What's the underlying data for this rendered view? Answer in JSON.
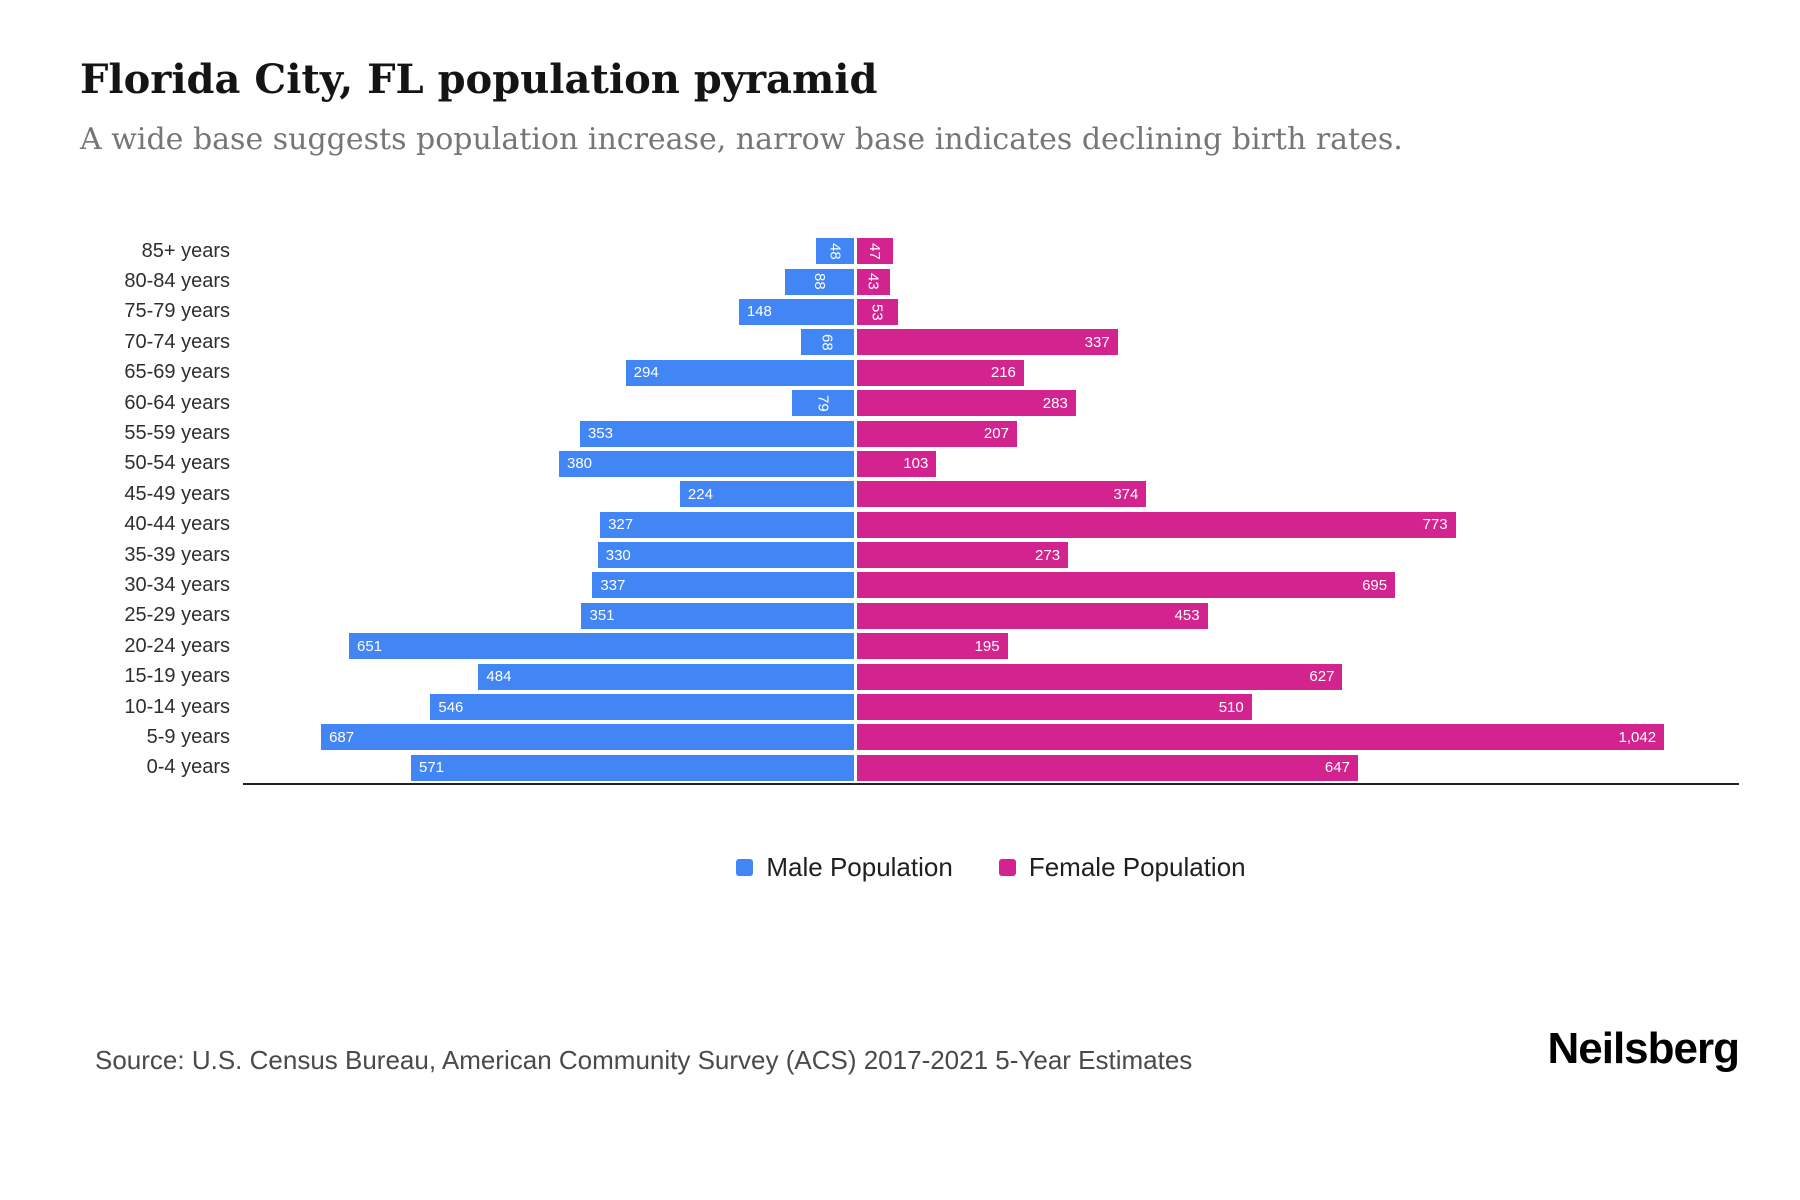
{
  "header": {
    "title": "Florida City, FL population pyramid",
    "subtitle": "A wide base suggests population increase, narrow base indicates declining birth rates."
  },
  "chart_data": {
    "type": "bar",
    "variant": "population-pyramid",
    "categories": [
      "85+ years",
      "80-84 years",
      "75-79 years",
      "70-74 years",
      "65-69 years",
      "60-64 years",
      "55-59 years",
      "50-54 years",
      "45-49 years",
      "40-44 years",
      "35-39 years",
      "30-34 years",
      "25-29 years",
      "20-24 years",
      "15-19 years",
      "10-14 years",
      "5-9 years",
      "0-4 years"
    ],
    "series": [
      {
        "name": "Male Population",
        "side": "left",
        "color": "#4285F4",
        "values": [
          48,
          88,
          148,
          68,
          294,
          79,
          353,
          380,
          224,
          327,
          330,
          337,
          351,
          651,
          484,
          546,
          687,
          571
        ]
      },
      {
        "name": "Female Population",
        "side": "right",
        "color": "#D2238F",
        "values": [
          47,
          43,
          53,
          337,
          216,
          283,
          207,
          103,
          374,
          773,
          273,
          695,
          453,
          195,
          627,
          510,
          1042,
          647
        ]
      }
    ],
    "value_labels": "inside outer end, white; rotated vertical when value < 100",
    "axis": {
      "male_max": 790,
      "female_max": 1140,
      "gridlines": false,
      "baseline": true
    },
    "legend_position": "bottom"
  },
  "footer": {
    "source": "Source: U.S. Census Bureau, American Community Survey (ACS) 2017-2021 5-Year Estimates",
    "brand": "Neilsberg"
  }
}
